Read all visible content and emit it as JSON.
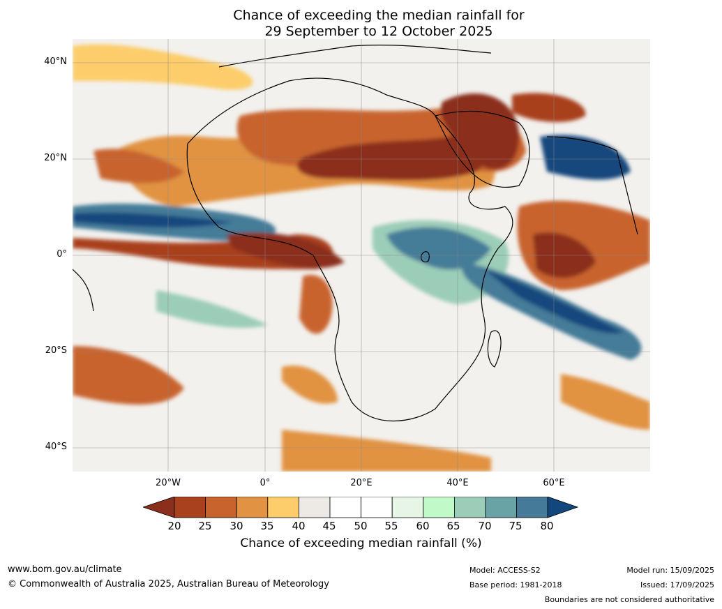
{
  "title": {
    "line1": "Chance of exceeding the median rainfall for",
    "line2": "29 September to 12 October 2025"
  },
  "map": {
    "region": "Africa and surrounding oceans",
    "lat_ticks": [
      "40°N",
      "20°N",
      "0°",
      "20°S",
      "40°S"
    ],
    "lon_ticks": [
      "20°W",
      "0°",
      "20°E",
      "40°E",
      "60°E"
    ]
  },
  "colorbar": {
    "title": "Chance of exceeding median rainfall (%)",
    "labels": [
      "20",
      "25",
      "30",
      "35",
      "40",
      "45",
      "50",
      "55",
      "60",
      "65",
      "70",
      "75",
      "80"
    ],
    "low_color": "#8b2e1c",
    "high_color": "#12477d",
    "colors": [
      "#a9411f",
      "#c8632e",
      "#e19343",
      "#fccd6a",
      "#edeae5",
      "#ffffff",
      "#ffffff",
      "#e6f5e6",
      "#c2f9c8",
      "#9bcdb8",
      "#6aa3a6",
      "#457b98"
    ]
  },
  "footer": {
    "website": "www.bom.gov.au/climate",
    "copyright": "© Commonwealth of Australia 2025, Australian Bureau of Meteorology",
    "model": "Model: ACCESS-S2",
    "base_period": "Base period: 1981-2018",
    "model_run": "Model run: 15/09/2025",
    "issued": "Issued: 17/09/2025",
    "boundaries": "Boundaries are not considered authoritative"
  }
}
